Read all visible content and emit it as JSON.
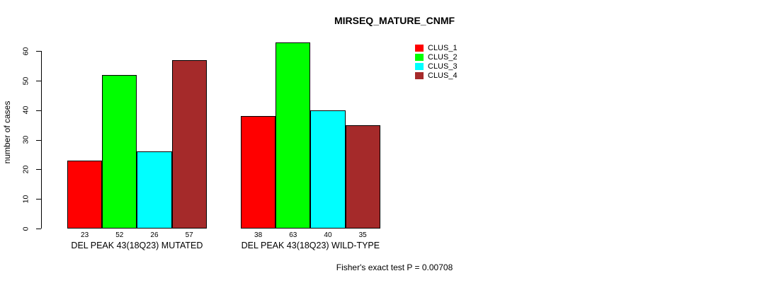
{
  "title": "MIRSEQ_MATURE_CNMF",
  "ylabel": "number of cases",
  "footer": "Fisher's exact test P = 0.00708",
  "chart_data": {
    "type": "bar",
    "title": "MIRSEQ_MATURE_CNMF",
    "xlabel": "",
    "ylabel": "number of cases",
    "categories": [
      "DEL PEAK 43(18Q23) MUTATED",
      "DEL PEAK 43(18Q23) WILD-TYPE"
    ],
    "series": [
      {
        "name": "CLUS_1",
        "color": "#ff0000",
        "values": [
          23,
          38
        ]
      },
      {
        "name": "CLUS_2",
        "color": "#00ff00",
        "values": [
          52,
          63
        ]
      },
      {
        "name": "CLUS_3",
        "color": "#00ffff",
        "values": [
          26,
          40
        ]
      },
      {
        "name": "CLUS_4",
        "color": "#a52a2a",
        "values": [
          57,
          35
        ]
      }
    ],
    "bar_value_labels": [
      [
        23,
        52,
        26,
        57
      ],
      [
        38,
        63,
        40,
        35
      ]
    ],
    "yticks": [
      0,
      10,
      20,
      30,
      40,
      50,
      60
    ],
    "ylim": [
      0,
      63
    ],
    "grid": false,
    "legend_position": "top-right",
    "bar_border_color": "#000000",
    "annotation": "Fisher's exact test P = 0.00708"
  }
}
